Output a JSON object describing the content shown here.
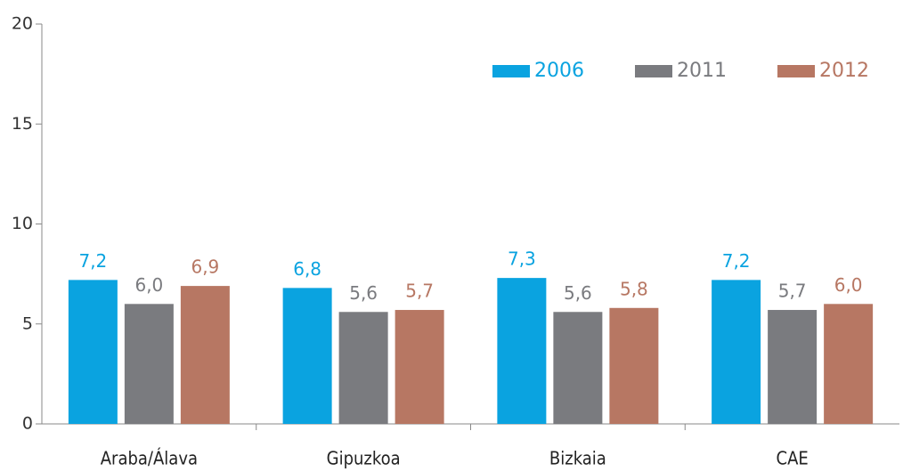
{
  "chart_data": {
    "type": "bar",
    "categories": [
      "Araba/Álava",
      "Gipuzkoa",
      "Bizkaia",
      "CAE"
    ],
    "series": [
      {
        "name": "2006",
        "color": "#0aa3e0",
        "values": [
          7.2,
          6.8,
          7.3,
          7.2
        ],
        "value_labels": [
          "7,2",
          "6,8",
          "7,3",
          "7,2"
        ]
      },
      {
        "name": "2011",
        "color": "#7a7b7f",
        "values": [
          6.0,
          5.6,
          5.6,
          5.7
        ],
        "value_labels": [
          "6,0",
          "5,6",
          "5,6",
          "5,7"
        ]
      },
      {
        "name": "2012",
        "color": "#b77763",
        "values": [
          6.9,
          5.7,
          5.8,
          6.0
        ],
        "value_labels": [
          "6,9",
          "5,7",
          "5,8",
          "6,0"
        ]
      }
    ],
    "ylim": [
      0,
      20
    ],
    "yticks": [
      0,
      5,
      10,
      15,
      20
    ],
    "grid": false,
    "legend": "top-right"
  }
}
